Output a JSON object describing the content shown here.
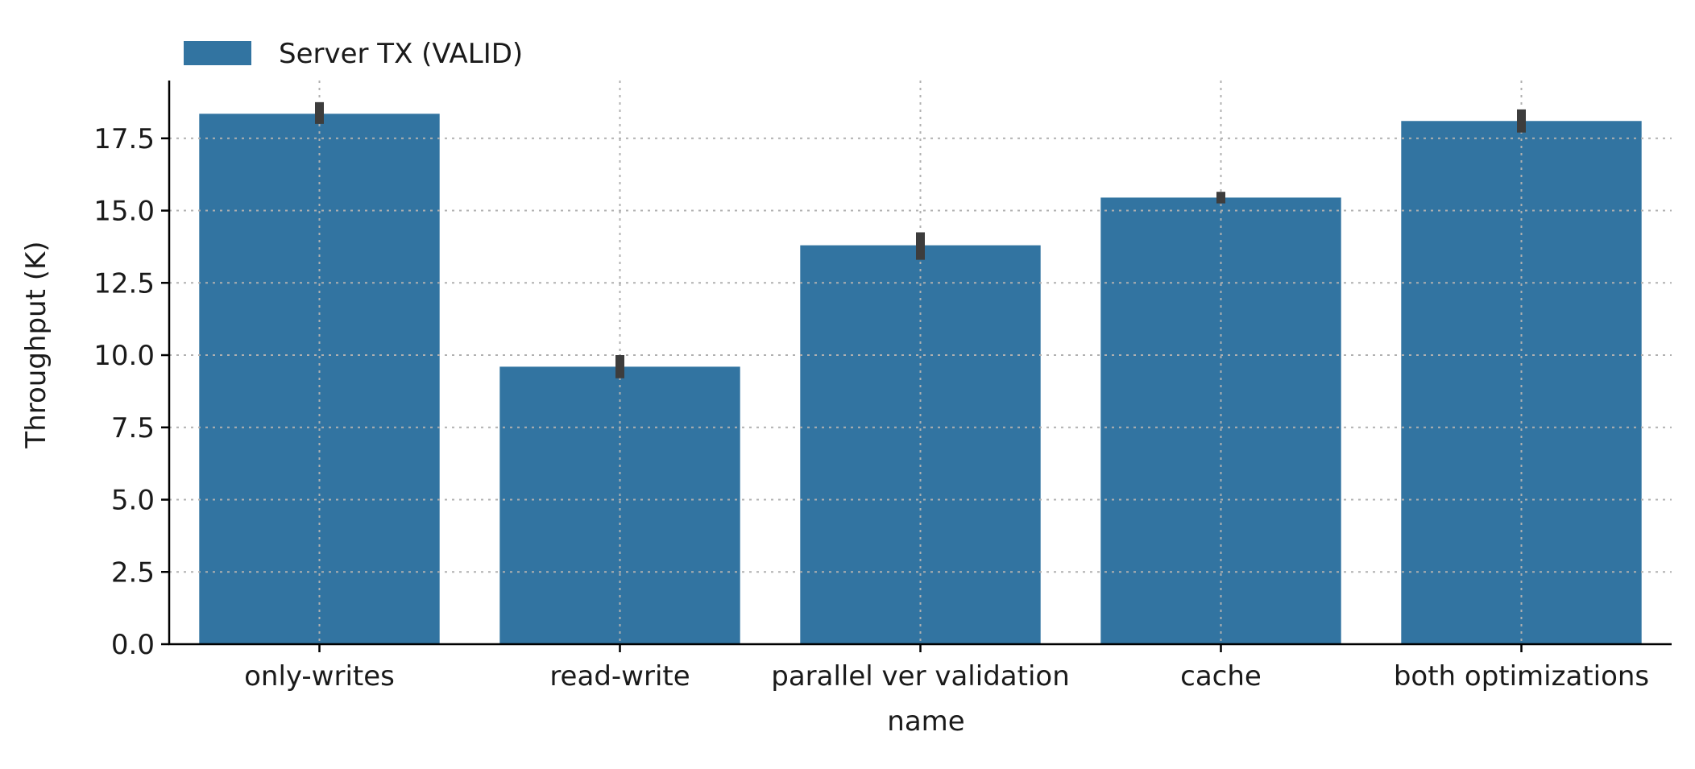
{
  "chart_data": {
    "type": "bar",
    "categories": [
      "only-writes",
      "read-write",
      "parallel ver validation",
      "cache",
      "both optimizations"
    ],
    "series": [
      {
        "name": "Server TX (VALID)",
        "values": [
          18.35,
          9.6,
          13.8,
          15.45,
          18.1
        ],
        "error_low": [
          18.0,
          9.2,
          13.3,
          15.25,
          17.7
        ],
        "error_high": [
          18.75,
          10.0,
          14.25,
          15.65,
          18.5
        ]
      }
    ],
    "xlabel": "name",
    "ylabel": "Throughput (K)",
    "ylim": [
      0,
      19.5
    ],
    "yticks": [
      "0.0",
      "2.5",
      "5.0",
      "7.5",
      "10.0",
      "12.5",
      "15.0",
      "17.5"
    ],
    "grid": true,
    "legend_position": "top-left",
    "colors": {
      "bar": "#3274a1",
      "error_bar": "#3d3d3d",
      "grid": "#b0b0b0",
      "axis": "#000000"
    }
  }
}
